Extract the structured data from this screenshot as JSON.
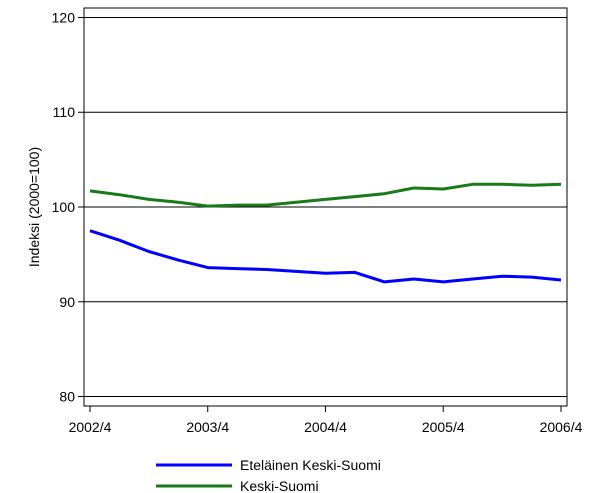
{
  "chart_data": {
    "type": "line",
    "ylabel": "Indeksi (2000=100)",
    "ylim": [
      79,
      121
    ],
    "yticks": [
      80,
      90,
      100,
      110,
      120
    ],
    "xticks": [
      "2002/4",
      "2003/4",
      "2004/4",
      "2005/4",
      "2006/4"
    ],
    "x": [
      "2002/4",
      "2003/1",
      "2003/2",
      "2003/3",
      "2003/4",
      "2004/1",
      "2004/2",
      "2004/3",
      "2004/4",
      "2005/1",
      "2005/2",
      "2005/3",
      "2005/4",
      "2006/1",
      "2006/2",
      "2006/3",
      "2006/4"
    ],
    "grid": true,
    "legend": "bottom",
    "series": [
      {
        "name": "Eteläinen Keski-Suomi",
        "color": "#0000ff",
        "values": [
          97.5,
          96.5,
          95.3,
          94.4,
          93.6,
          93.5,
          93.4,
          93.2,
          93.0,
          93.1,
          92.1,
          92.4,
          92.1,
          92.4,
          92.7,
          92.6,
          92.3
        ]
      },
      {
        "name": "Keski-Suomi",
        "color": "#1a7a1a",
        "values": [
          101.7,
          101.3,
          100.8,
          100.5,
          100.1,
          100.2,
          100.2,
          100.5,
          100.8,
          101.1,
          101.4,
          102.0,
          101.9,
          102.4,
          102.4,
          102.3,
          102.4
        ]
      }
    ]
  }
}
